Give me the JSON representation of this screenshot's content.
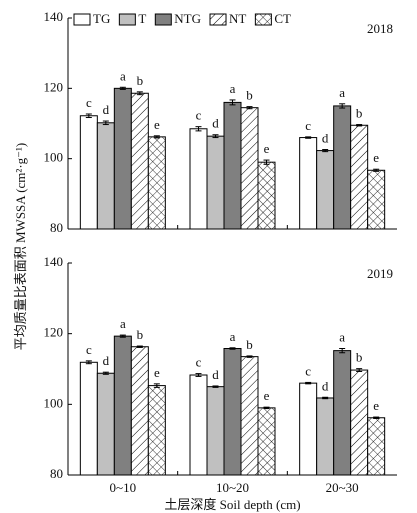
{
  "chart_data": [
    {
      "type": "bar",
      "label": "2018",
      "ylabel": "平均质量比表面积 MWSSA (cm²·g⁻¹)",
      "categories": [
        "0~10",
        "10~20",
        "20~30"
      ],
      "ylim": [
        80,
        140
      ],
      "yticks": [
        80,
        100,
        120,
        140
      ],
      "series": [
        {
          "name": "TG",
          "color": "#ffffff",
          "values": [
            112.2,
            108.5,
            106.0
          ],
          "errors": [
            0.5,
            0.6,
            0.2
          ],
          "letters": [
            "c",
            "c",
            "c"
          ]
        },
        {
          "name": "T",
          "color": "#c0c0c0",
          "values": [
            110.2,
            106.4,
            102.3
          ],
          "errors": [
            0.5,
            0.4,
            0.3
          ],
          "letters": [
            "d",
            "d",
            "d"
          ]
        },
        {
          "name": "NTG",
          "color": "#808080",
          "values": [
            120.0,
            116.0,
            115.0
          ],
          "errors": [
            0.3,
            0.7,
            0.6
          ],
          "letters": [
            "a",
            "a",
            "a"
          ]
        },
        {
          "name": "NT",
          "color": "#ffffff",
          "hatch": "/",
          "values": [
            118.6,
            114.5,
            109.5
          ],
          "errors": [
            0.4,
            0.3,
            0.2
          ],
          "letters": [
            "b",
            "b",
            "b"
          ]
        },
        {
          "name": "CT",
          "color": "#ffffff",
          "hatch": "x",
          "values": [
            106.2,
            99.0,
            96.7
          ],
          "errors": [
            0.3,
            0.6,
            0.3
          ],
          "letters": [
            "e",
            "e",
            "e"
          ]
        }
      ]
    },
    {
      "type": "bar",
      "label": "2019",
      "xlabel": "土层深度 Soil depth (cm)",
      "categories": [
        "0~10",
        "10~20",
        "20~30"
      ],
      "ylim": [
        80,
        140
      ],
      "yticks": [
        80,
        100,
        120,
        140
      ],
      "series": [
        {
          "color": "#ffffff",
          "values": [
            111.9,
            108.3,
            106.0
          ],
          "errors": [
            0.4,
            0.4,
            0.2
          ],
          "letters": [
            "c",
            "c",
            "c"
          ]
        },
        {
          "color": "#c0c0c0",
          "values": [
            108.8,
            105.0,
            101.8
          ],
          "errors": [
            0.3,
            0.2,
            0.2
          ],
          "letters": [
            "d",
            "d",
            "d"
          ]
        },
        {
          "color": "#808080",
          "values": [
            119.3,
            115.8,
            115.2
          ],
          "errors": [
            0.3,
            0.2,
            0.6
          ],
          "letters": [
            "a",
            "a",
            "a"
          ]
        },
        {
          "color": "#ffffff",
          "hatch": "/",
          "values": [
            116.3,
            113.5,
            109.7
          ],
          "errors": [
            0.2,
            0.2,
            0.4
          ],
          "letters": [
            "b",
            "b",
            "b"
          ]
        },
        {
          "color": "#ffffff",
          "hatch": "x",
          "values": [
            105.3,
            99.0,
            96.2
          ],
          "errors": [
            0.5,
            0.2,
            0.2
          ],
          "letters": [
            "e",
            "e",
            "e"
          ]
        }
      ]
    }
  ]
}
